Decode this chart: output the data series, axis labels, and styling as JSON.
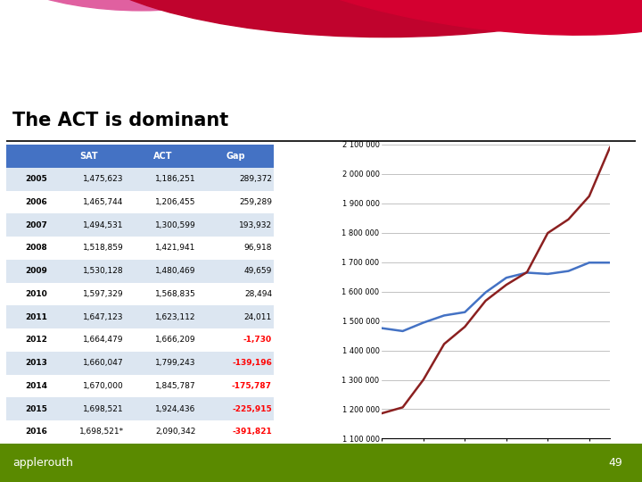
{
  "title": "The ACT is dominant",
  "years": [
    2005,
    2006,
    2007,
    2008,
    2009,
    2010,
    2011,
    2012,
    2013,
    2014,
    2015,
    2016
  ],
  "sat": [
    1475623,
    1465744,
    1494531,
    1518859,
    1530128,
    1597329,
    1647123,
    1664479,
    1660047,
    1670000,
    1698521,
    1698521
  ],
  "act": [
    1186251,
    1206455,
    1300599,
    1421941,
    1480469,
    1568835,
    1623112,
    1666209,
    1799243,
    1845787,
    1924436,
    2090342
  ],
  "table_years": [
    "2005",
    "2006",
    "2007",
    "2008",
    "2009",
    "2010",
    "2011",
    "2012",
    "2013",
    "2014",
    "2015",
    "2016"
  ],
  "sat_str": [
    "1,475,623",
    "1,465,744",
    "1,494,531",
    "1,518,859",
    "1,530,128",
    "1,597,329",
    "1,647,123",
    "1,664,479",
    "1,660,047",
    "1,670,000",
    "1,698,521",
    "1,698,521*"
  ],
  "act_str": [
    "1,186,251",
    "1,206,455",
    "1,300,599",
    "1,421,941",
    "1,480,469",
    "1,568,835",
    "1,623,112",
    "1,666,209",
    "1,799,243",
    "1,845,787",
    "1,924,436",
    "2,090,342"
  ],
  "gap_str": [
    "289,372",
    "259,289",
    "193,932",
    "96,918",
    "49,659",
    "28,494",
    "24,011",
    "-1,730",
    "-139,196",
    "-175,787",
    "-225,915",
    "-391,821"
  ],
  "gap_negative": [
    false,
    false,
    false,
    false,
    false,
    false,
    false,
    true,
    true,
    true,
    true,
    true
  ],
  "header_color": "#4472c4",
  "row_colors": [
    "#dce6f1",
    "#ffffff"
  ],
  "sat_color": "#4472c4",
  "act_color": "#8b2020",
  "neg_color": "#ff0000",
  "pos_color": "#000000",
  "bg_color": "#ffffff",
  "ylim_min": 1100000,
  "ylim_max": 2100000,
  "ytick_values": [
    1100000,
    1200000,
    1300000,
    1400000,
    1500000,
    1600000,
    1700000,
    1800000,
    1900000,
    2000000,
    2100000
  ],
  "ytick_labels": [
    "1 100 000",
    "1 200 000",
    "1 300 000",
    "1 400 000",
    "1 500 000",
    "1 600 000",
    "1 700 000",
    "1 800 000",
    "1 900 000",
    "2 000 000",
    "2 100 000"
  ],
  "footer_color": "#5a8a00",
  "footer_text": "applerouth",
  "page_num": "49",
  "banner_color1": "#e8003d",
  "banner_color2": "#c0032d",
  "banner_color3": "#e8005a",
  "banner_pink": "#e060a0"
}
